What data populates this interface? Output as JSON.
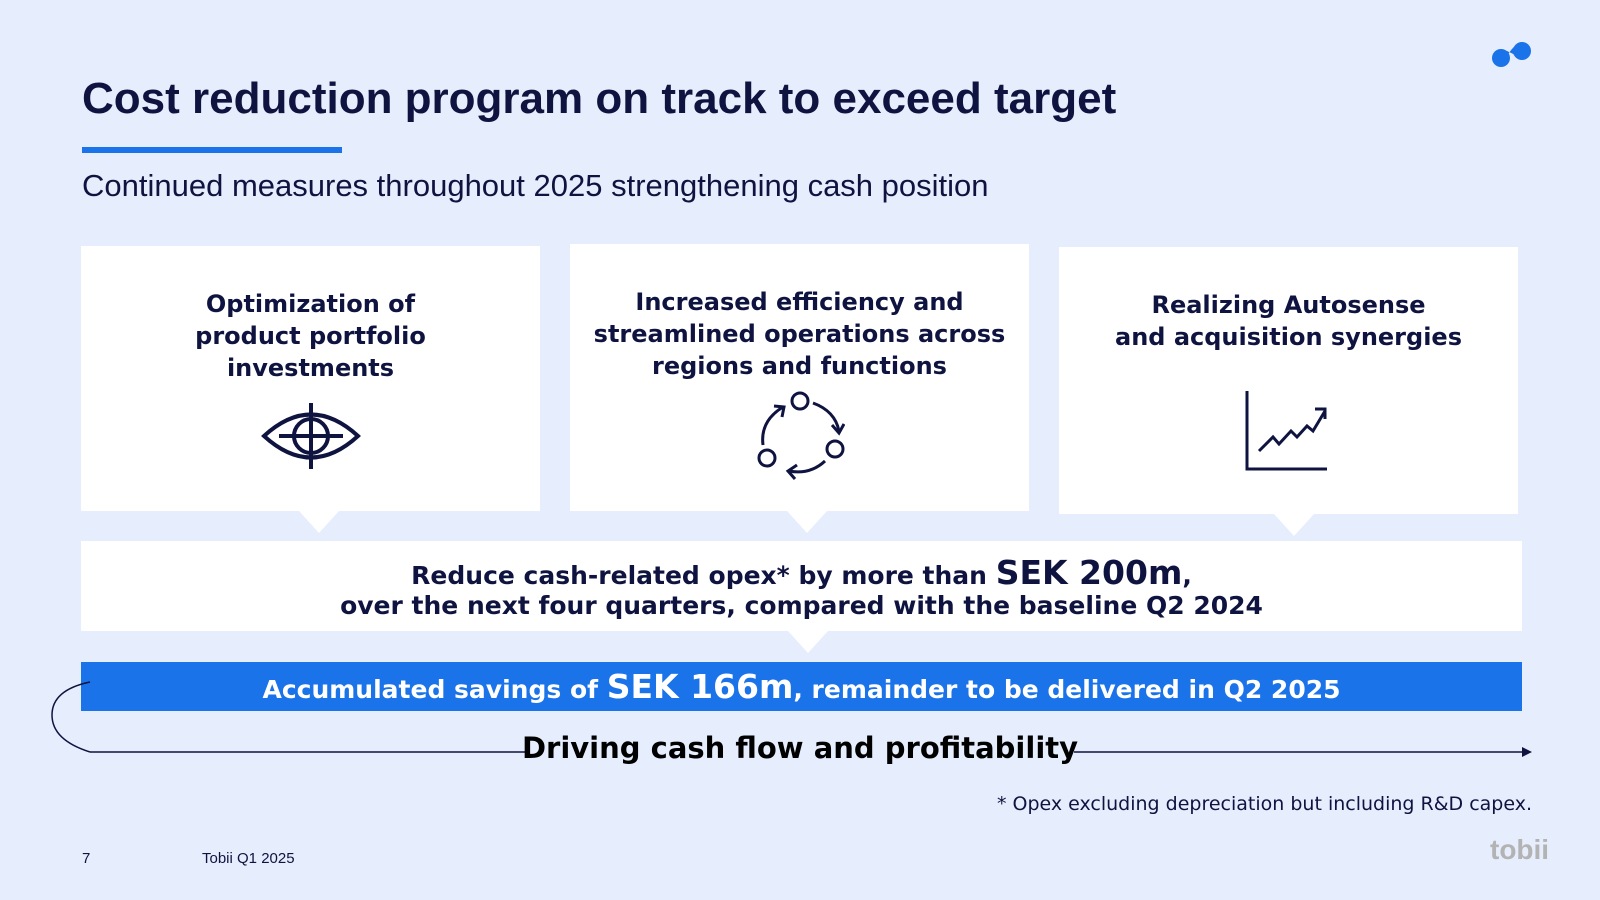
{
  "slide": {
    "title": "Cost reduction program on track to exceed target",
    "subtitle": "Continued measures throughout 2025 strengthening cash position"
  },
  "cards": [
    {
      "lines": [
        "Optimization of",
        "product portfolio",
        "investments"
      ],
      "icon": "eye-target-icon"
    },
    {
      "lines": [
        "Increased efficiency and",
        "streamlined operations across",
        "regions and functions"
      ],
      "icon": "cycle-arrows-icon"
    },
    {
      "lines": [
        "Realizing Autosense",
        "and acquisition synergies"
      ],
      "icon": "growth-chart-icon"
    }
  ],
  "target": {
    "line1_pre": "Reduce cash-related opex* by more than ",
    "line1_amount": "SEK 200m",
    "line1_post": ",",
    "line2": "over the next four quarters, compared with the baseline Q2 2024"
  },
  "savings": {
    "pre": "Accumulated savings of ",
    "amount": "SEK 166m",
    "post": ", remainder to be delivered in Q2 2025"
  },
  "flow": {
    "label": "Driving cash flow and profitability"
  },
  "footnote": "* Opex excluding depreciation but including R&D capex.",
  "footer": {
    "page_number": "7",
    "name": "Tobii Q1 2025",
    "logo_text": "tobii"
  },
  "colors": {
    "accent": "#1a73e8",
    "navy": "#0f1340",
    "background": "#e6edfd",
    "logo_grey": "#b3b3b3"
  }
}
